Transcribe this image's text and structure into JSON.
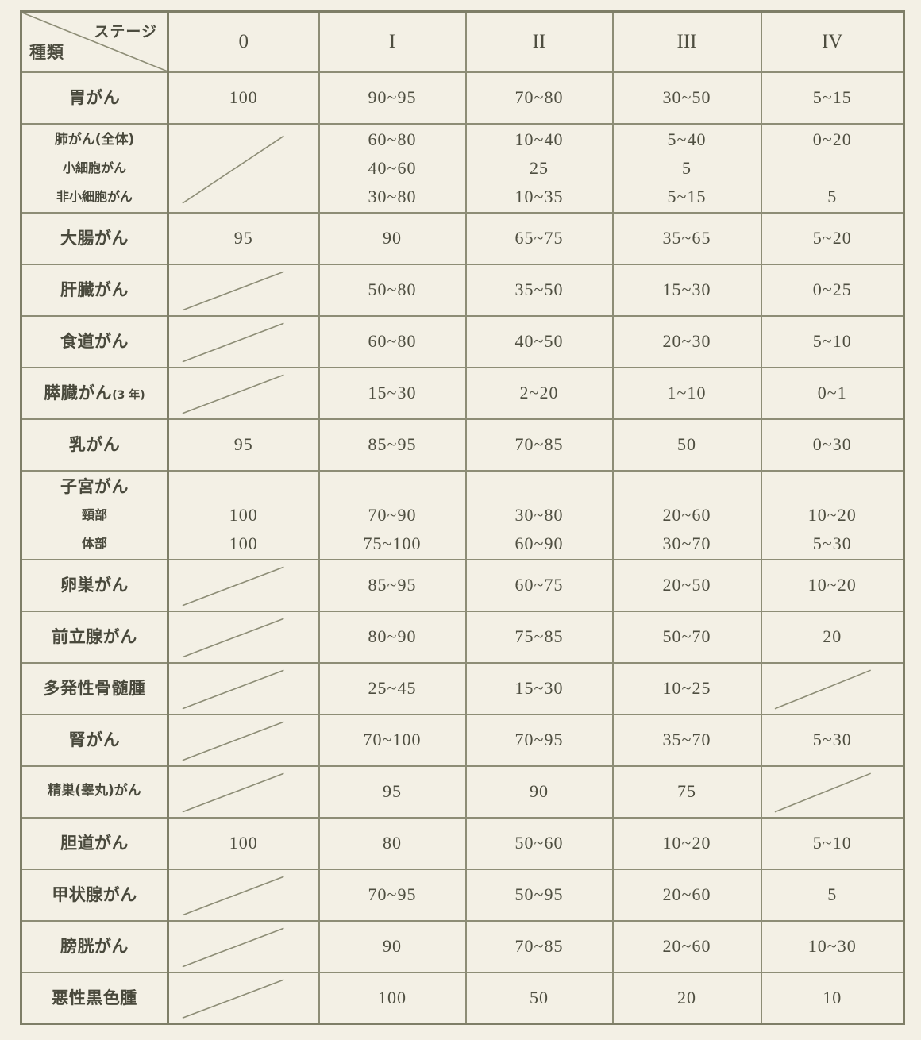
{
  "table": {
    "header": {
      "corner": {
        "top_right": "ステージ",
        "bottom_left": "種類"
      },
      "columns": [
        "0",
        "I",
        "II",
        "III",
        "IV"
      ]
    },
    "unit_note": "",
    "rows": [
      {
        "label": {
          "main": "胃がん",
          "subs": []
        },
        "cells": [
          {
            "lines": [
              "100"
            ]
          },
          {
            "lines": [
              "90~95"
            ]
          },
          {
            "lines": [
              "70~80"
            ]
          },
          {
            "lines": [
              "30~50"
            ]
          },
          {
            "lines": [
              "5~15"
            ]
          }
        ]
      },
      {
        "label": {
          "main": "肺がん(全体)",
          "subs": [
            "小細胞がん",
            "非小細胞がん"
          ]
        },
        "cells": [
          {
            "diag": true
          },
          {
            "lines": [
              "60~80",
              "40~60",
              "30~80"
            ]
          },
          {
            "lines": [
              "10~40",
              "25",
              "10~35"
            ]
          },
          {
            "lines": [
              "5~40",
              "5",
              "5~15"
            ]
          },
          {
            "lines": [
              "0~20",
              "",
              "5"
            ]
          }
        ]
      },
      {
        "label": {
          "main": "大腸がん",
          "subs": []
        },
        "cells": [
          {
            "lines": [
              "95"
            ]
          },
          {
            "lines": [
              "90"
            ]
          },
          {
            "lines": [
              "65~75"
            ]
          },
          {
            "lines": [
              "35~65"
            ]
          },
          {
            "lines": [
              "5~20"
            ]
          }
        ]
      },
      {
        "label": {
          "main": "肝臓がん",
          "subs": []
        },
        "cells": [
          {
            "diag": true
          },
          {
            "lines": [
              "50~80"
            ]
          },
          {
            "lines": [
              "35~50"
            ]
          },
          {
            "lines": [
              "15~30"
            ]
          },
          {
            "lines": [
              "0~25"
            ]
          }
        ]
      },
      {
        "label": {
          "main": "食道がん",
          "subs": []
        },
        "cells": [
          {
            "diag": true
          },
          {
            "lines": [
              "60~80"
            ]
          },
          {
            "lines": [
              "40~50"
            ]
          },
          {
            "lines": [
              "20~30"
            ]
          },
          {
            "lines": [
              "5~10"
            ]
          }
        ]
      },
      {
        "label": {
          "main": "膵臓がん",
          "note": "(3 年)",
          "subs": []
        },
        "cells": [
          {
            "diag": true
          },
          {
            "lines": [
              "15~30"
            ]
          },
          {
            "lines": [
              "2~20"
            ]
          },
          {
            "lines": [
              "1~10"
            ]
          },
          {
            "lines": [
              "0~1"
            ]
          }
        ]
      },
      {
        "label": {
          "main": "乳がん",
          "subs": []
        },
        "cells": [
          {
            "lines": [
              "95"
            ]
          },
          {
            "lines": [
              "85~95"
            ]
          },
          {
            "lines": [
              "70~85"
            ]
          },
          {
            "lines": [
              "50"
            ]
          },
          {
            "lines": [
              "0~30"
            ]
          }
        ]
      },
      {
        "label": {
          "main": "子宮がん",
          "subs": [
            "頸部",
            "体部"
          ]
        },
        "cells": [
          {
            "lines": [
              "",
              "100",
              "100"
            ]
          },
          {
            "lines": [
              "",
              "70~90",
              "75~100"
            ]
          },
          {
            "lines": [
              "",
              "30~80",
              "60~90"
            ]
          },
          {
            "lines": [
              "",
              "20~60",
              "30~70"
            ]
          },
          {
            "lines": [
              "",
              "10~20",
              "5~30"
            ]
          }
        ]
      },
      {
        "label": {
          "main": "卵巣がん",
          "subs": []
        },
        "cells": [
          {
            "diag": true
          },
          {
            "lines": [
              "85~95"
            ]
          },
          {
            "lines": [
              "60~75"
            ]
          },
          {
            "lines": [
              "20~50"
            ]
          },
          {
            "lines": [
              "10~20"
            ]
          }
        ]
      },
      {
        "label": {
          "main": "前立腺がん",
          "subs": []
        },
        "cells": [
          {
            "diag": true
          },
          {
            "lines": [
              "80~90"
            ]
          },
          {
            "lines": [
              "75~85"
            ]
          },
          {
            "lines": [
              "50~70"
            ]
          },
          {
            "lines": [
              "20"
            ]
          }
        ]
      },
      {
        "label": {
          "main": "多発性骨髄腫",
          "subs": []
        },
        "cells": [
          {
            "diag": true
          },
          {
            "lines": [
              "25~45"
            ]
          },
          {
            "lines": [
              "15~30"
            ]
          },
          {
            "lines": [
              "10~25"
            ]
          },
          {
            "diag": true
          }
        ]
      },
      {
        "label": {
          "main": "腎がん",
          "subs": []
        },
        "cells": [
          {
            "diag": true
          },
          {
            "lines": [
              "70~100"
            ]
          },
          {
            "lines": [
              "70~95"
            ]
          },
          {
            "lines": [
              "35~70"
            ]
          },
          {
            "lines": [
              "5~30"
            ]
          }
        ]
      },
      {
        "label": {
          "main": "精巣(睾丸)がん",
          "subs": []
        },
        "cells": [
          {
            "diag": true
          },
          {
            "lines": [
              "95"
            ]
          },
          {
            "lines": [
              "90"
            ]
          },
          {
            "lines": [
              "75"
            ]
          },
          {
            "diag": true
          }
        ]
      },
      {
        "label": {
          "main": "胆道がん",
          "subs": []
        },
        "cells": [
          {
            "lines": [
              "100"
            ]
          },
          {
            "lines": [
              "80"
            ]
          },
          {
            "lines": [
              "50~60"
            ]
          },
          {
            "lines": [
              "10~20"
            ]
          },
          {
            "lines": [
              "5~10"
            ]
          }
        ]
      },
      {
        "label": {
          "main": "甲状腺がん",
          "subs": []
        },
        "cells": [
          {
            "diag": true
          },
          {
            "lines": [
              "70~95"
            ]
          },
          {
            "lines": [
              "50~95"
            ]
          },
          {
            "lines": [
              "20~60"
            ]
          },
          {
            "lines": [
              "5"
            ]
          }
        ]
      },
      {
        "label": {
          "main": "膀胱がん",
          "subs": []
        },
        "cells": [
          {
            "diag": true
          },
          {
            "lines": [
              "90"
            ]
          },
          {
            "lines": [
              "70~85"
            ]
          },
          {
            "lines": [
              "20~60"
            ]
          },
          {
            "lines": [
              "10~30"
            ]
          }
        ]
      },
      {
        "label": {
          "main": "悪性黒色腫",
          "subs": []
        },
        "cells": [
          {
            "diag": true
          },
          {
            "lines": [
              "100"
            ]
          },
          {
            "lines": [
              "50"
            ]
          },
          {
            "lines": [
              "20"
            ]
          },
          {
            "lines": [
              "10"
            ]
          }
        ]
      }
    ]
  }
}
